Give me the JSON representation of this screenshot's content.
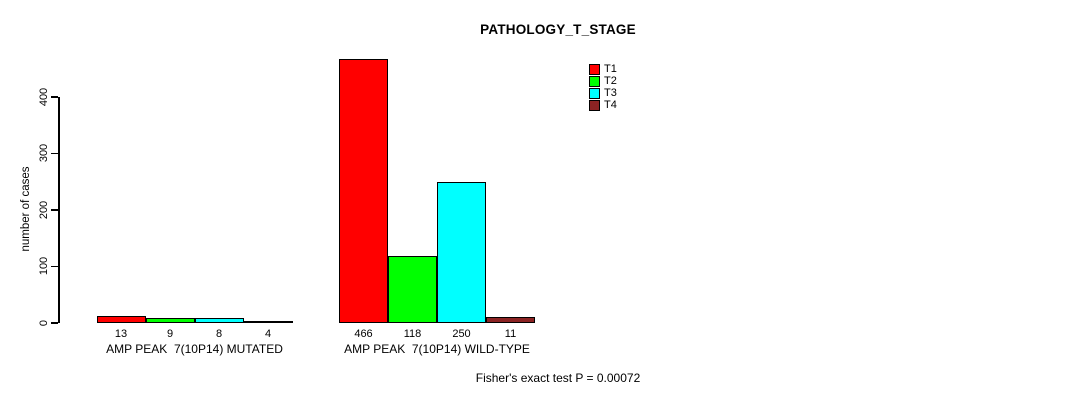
{
  "chart_data": {
    "type": "bar",
    "title": "PATHOLOGY_T_STAGE",
    "ylabel": "number of cases",
    "yticks": [
      0,
      100,
      200,
      300,
      400
    ],
    "ylim": [
      0,
      466
    ],
    "grid": false,
    "legend_position": "top-right",
    "legend": [
      {
        "label": "T1",
        "color": "#FF0000"
      },
      {
        "label": "T2",
        "color": "#00FF00"
      },
      {
        "label": "T3",
        "color": "#00FFFF"
      },
      {
        "label": "T4",
        "color": "#8B2323"
      }
    ],
    "groups": [
      {
        "label": "AMP PEAK  7(10P14) MUTATED",
        "values": [
          13,
          9,
          8,
          4
        ]
      },
      {
        "label": "AMP PEAK  7(10P14) WILD-TYPE",
        "values": [
          466,
          118,
          250,
          11
        ]
      }
    ],
    "footnote": "Fisher's exact test P = 0.00072"
  }
}
